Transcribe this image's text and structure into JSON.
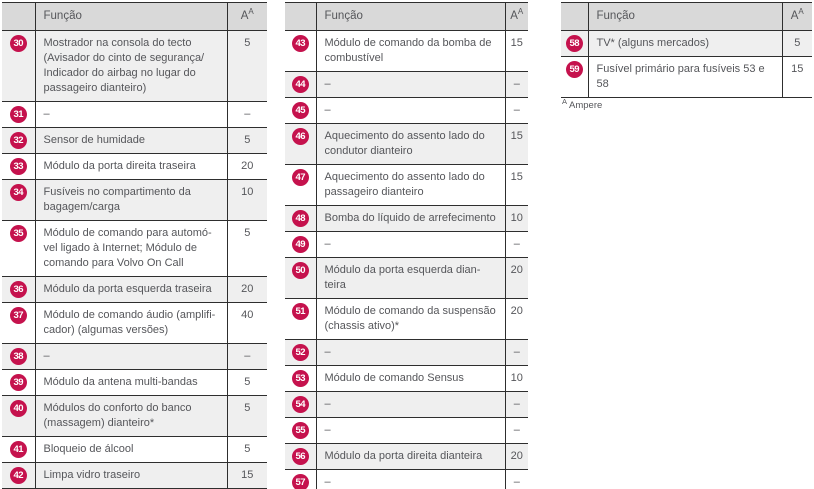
{
  "colors": {
    "accent": "#c5124d",
    "header_bg": "#d9d9d9",
    "row_stripe": "#efefef",
    "border": "#2e2e2e",
    "text": "#55565a"
  },
  "footnote": {
    "marker": "A",
    "text": "Ampere"
  },
  "tables": [
    {
      "header": {
        "function_label": "Função",
        "amp_label": "A",
        "amp_sup": "A"
      },
      "rows": [
        {
          "num": "30",
          "function": "Mostrador na consola do tecto (Avisador do cinto de segurança/​Indicador do airbag no lugar do passageiro dianteiro)",
          "amp": "5"
        },
        {
          "num": "31",
          "function": "–",
          "amp": "–"
        },
        {
          "num": "32",
          "function": "Sensor de humidade",
          "amp": "5"
        },
        {
          "num": "33",
          "function": "Módulo da porta direita traseira",
          "amp": "20"
        },
        {
          "num": "34",
          "function": "Fusíveis no compartimento da bagagem/​carga",
          "amp": "10"
        },
        {
          "num": "35",
          "function": "Módulo de comando para automó­vel ligado à Internet; Módulo de comando para Volvo On Call",
          "amp": "5"
        },
        {
          "num": "36",
          "function": "Módulo da porta esquerda traseira",
          "amp": "20"
        },
        {
          "num": "37",
          "function": "Módulo de comando áudio (amplifi­cador) (algumas versões)",
          "amp": "40"
        },
        {
          "num": "38",
          "function": "–",
          "amp": "–"
        },
        {
          "num": "39",
          "function": "Módulo da antena multi-bandas",
          "amp": "5"
        },
        {
          "num": "40",
          "function": "Módulos do conforto do banco (massagem) dianteiro*",
          "amp": "5"
        },
        {
          "num": "41",
          "function": "Bloqueio de álcool",
          "amp": "5"
        },
        {
          "num": "42",
          "function": "Limpa vidro traseiro",
          "amp": "15"
        }
      ]
    },
    {
      "header": {
        "function_label": "Função",
        "amp_label": "A",
        "amp_sup": "A"
      },
      "rows": [
        {
          "num": "43",
          "function": "Módulo de comando da bomba de combustível",
          "amp": "15"
        },
        {
          "num": "44",
          "function": "–",
          "amp": "–"
        },
        {
          "num": "45",
          "function": "–",
          "amp": "–"
        },
        {
          "num": "46",
          "function": "Aquecimento do assento lado do condutor dianteiro",
          "amp": "15"
        },
        {
          "num": "47",
          "function": "Aquecimento do assento lado do passageiro dianteiro",
          "amp": "15"
        },
        {
          "num": "48",
          "function": "Bomba do líquido de arrefecimento",
          "amp": "10"
        },
        {
          "num": "49",
          "function": "–",
          "amp": "–"
        },
        {
          "num": "50",
          "function": "Módulo da porta esquerda dian­teira",
          "amp": "20"
        },
        {
          "num": "51",
          "function": "Módulo de comando da suspensão (chassis ativo)*",
          "amp": "20"
        },
        {
          "num": "52",
          "function": "–",
          "amp": "–"
        },
        {
          "num": "53",
          "function": "Módulo de comando Sensus",
          "amp": "10"
        },
        {
          "num": "54",
          "function": "–",
          "amp": "–"
        },
        {
          "num": "55",
          "function": "–",
          "amp": "–"
        },
        {
          "num": "56",
          "function": "Módulo da porta direita dianteira",
          "amp": "20"
        },
        {
          "num": "57",
          "function": "–",
          "amp": "–"
        }
      ]
    },
    {
      "header": {
        "function_label": "Função",
        "amp_label": "A",
        "amp_sup": "A"
      },
      "rows": [
        {
          "num": "58",
          "function": "TV* (alguns mercados)",
          "amp": "5"
        },
        {
          "num": "59",
          "function": "Fusível primário para fusíveis 53 e 58",
          "amp": "15"
        }
      ]
    }
  ]
}
